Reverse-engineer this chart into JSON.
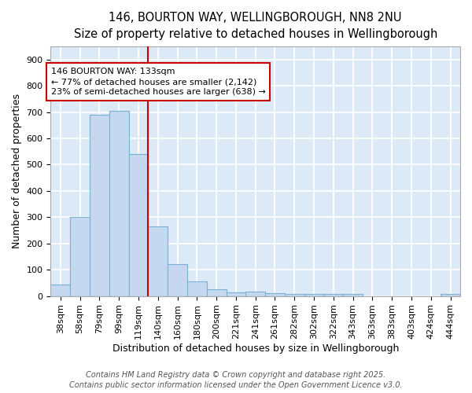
{
  "title_line1": "146, BOURTON WAY, WELLINGBOROUGH, NN8 2NU",
  "title_line2": "Size of property relative to detached houses in Wellingborough",
  "xlabel": "Distribution of detached houses by size in Wellingborough",
  "ylabel": "Number of detached properties",
  "bar_labels": [
    "38sqm",
    "58sqm",
    "79sqm",
    "99sqm",
    "119sqm",
    "140sqm",
    "160sqm",
    "180sqm",
    "200sqm",
    "221sqm",
    "241sqm",
    "261sqm",
    "282sqm",
    "302sqm",
    "322sqm",
    "343sqm",
    "363sqm",
    "383sqm",
    "403sqm",
    "424sqm",
    "444sqm"
  ],
  "bar_heights": [
    45,
    300,
    690,
    705,
    540,
    265,
    122,
    57,
    27,
    14,
    18,
    10,
    8,
    8,
    8,
    8,
    0,
    0,
    0,
    0,
    8
  ],
  "bar_color": "#c5d8f0",
  "bar_edgecolor": "#7bafd4",
  "bar_linewidth": 0.8,
  "vline_color": "#cc0000",
  "vline_linewidth": 1.5,
  "annotation_line1": "146 BOURTON WAY: 133sqm",
  "annotation_line2": "← 77% of detached houses are smaller (2,142)",
  "annotation_line3": "23% of semi-detached houses are larger (638) →",
  "annotation_boxcolor": "white",
  "annotation_edgecolor": "#cc0000",
  "footer_line1": "Contains HM Land Registry data © Crown copyright and database right 2025.",
  "footer_line2": "Contains public sector information licensed under the Open Government Licence v3.0.",
  "plot_bg_color": "#dce9f7",
  "fig_bg_color": "#ffffff",
  "grid_color": "#ffffff",
  "ylim": [
    0,
    950
  ],
  "yticks": [
    0,
    100,
    200,
    300,
    400,
    500,
    600,
    700,
    800,
    900
  ],
  "title_fontsize": 10.5,
  "subtitle_fontsize": 9.5,
  "axis_label_fontsize": 9,
  "tick_fontsize": 8,
  "annotation_fontsize": 8,
  "footer_fontsize": 7
}
